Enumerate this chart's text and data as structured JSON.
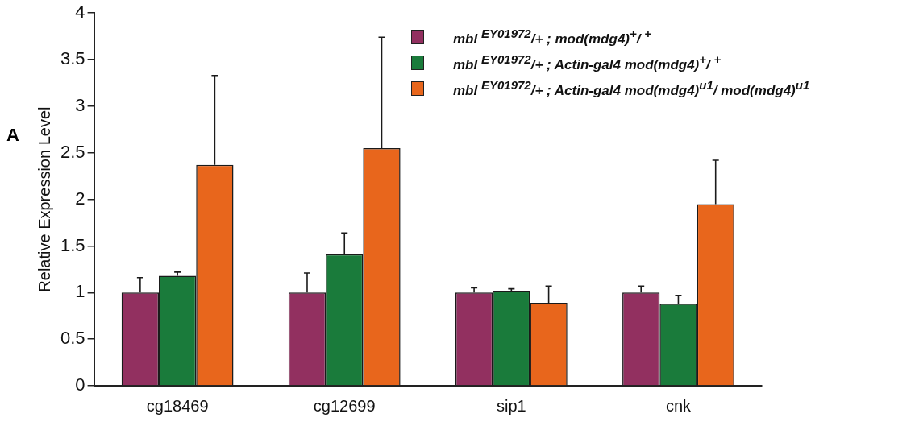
{
  "chart_data": {
    "type": "bar",
    "ylabel": "Relative Expression Level",
    "categories": [
      "cg18469",
      "cg12699",
      "sip1",
      "cnk"
    ],
    "series": [
      {
        "name": "mbl $^{EY01972}$/+ ; mod(mdg4)$^{+}$/ $^{+}$",
        "color": "#923060",
        "values": [
          1.0,
          1.0,
          1.0,
          1.0
        ],
        "errors": [
          [
            1.0,
            1.16
          ],
          [
            1.0,
            1.21
          ],
          [
            1.0,
            1.05
          ],
          [
            1.0,
            1.07
          ]
        ]
      },
      {
        "name": "mbl $^{EY01972}$/+ ; Actin-gal4 mod(mdg4)$^{+}$/ $^{+}$",
        "color": "#1a7b3b",
        "values": [
          1.18,
          1.41,
          1.02,
          0.88
        ],
        "errors": [
          [
            1.18,
            1.22
          ],
          [
            1.41,
            1.64
          ],
          [
            1.02,
            1.04
          ],
          [
            0.88,
            0.97
          ]
        ]
      },
      {
        "name": "mbl $^{EY01972}$/+ ; Actin-gal4 mod(mdg4)$^{u1}$/ mod(mdg4)$^{u1}$",
        "color": "#e8661c",
        "values": [
          2.37,
          2.55,
          0.89,
          1.95
        ],
        "errors": [
          [
            2.37,
            3.33
          ],
          [
            2.55,
            3.74
          ],
          [
            0.89,
            1.07
          ],
          [
            1.95,
            2.42
          ]
        ]
      }
    ],
    "ylim": [
      0,
      4
    ],
    "yticks": [
      0,
      0.5,
      1,
      1.5,
      2,
      2.5,
      3,
      3.5,
      4
    ],
    "grid": false,
    "legend": "top right",
    "annotations": [
      "A"
    ]
  }
}
